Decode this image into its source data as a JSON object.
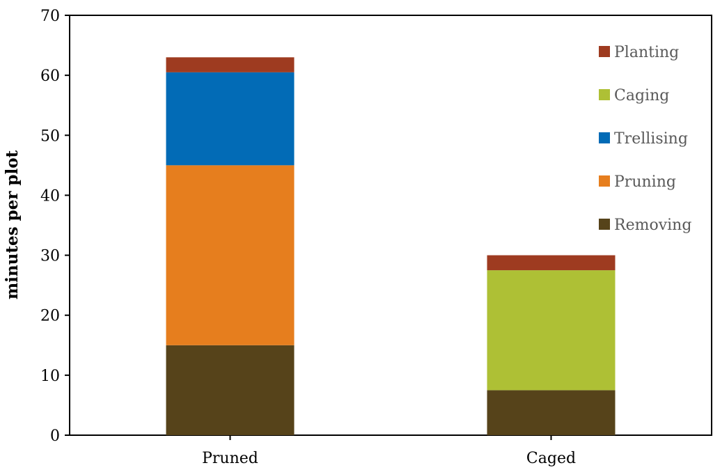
{
  "chart_data": {
    "type": "bar",
    "stacked": true,
    "categories": [
      "Pruned",
      "Caged"
    ],
    "series": [
      {
        "name": "Removing",
        "color": "#56431a",
        "values": [
          15,
          7.5
        ]
      },
      {
        "name": "Pruning",
        "color": "#e67e1e",
        "values": [
          30,
          0
        ]
      },
      {
        "name": "Trellising",
        "color": "#026bb6",
        "values": [
          15.5,
          0
        ]
      },
      {
        "name": "Caging",
        "color": "#aec035",
        "values": [
          0,
          20
        ]
      },
      {
        "name": "Planting",
        "color": "#9e3b20",
        "values": [
          2.5,
          2.5
        ]
      }
    ],
    "legend_order": [
      "Planting",
      "Caging",
      "Trellising",
      "Pruning",
      "Removing"
    ],
    "legend_position": "top-right",
    "title": "",
    "xlabel": "",
    "ylabel": "minutes per plot",
    "ylim": [
      0,
      70
    ],
    "yticks": [
      0,
      10,
      20,
      30,
      40,
      50,
      60,
      70
    ],
    "grid": false
  }
}
